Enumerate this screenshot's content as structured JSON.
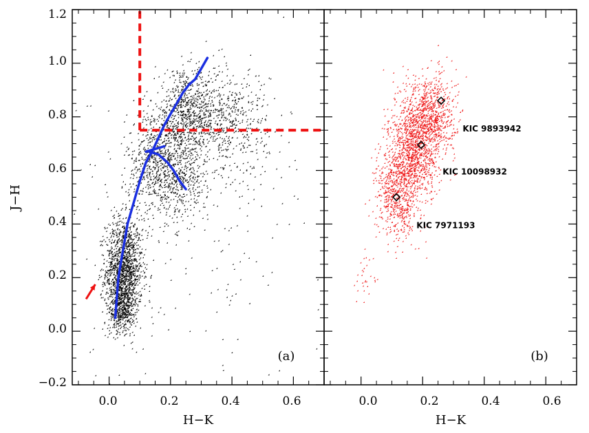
{
  "chart_data": [
    {
      "panel": "a",
      "type": "scatter",
      "panel_label": "(a)",
      "xlabel": "H−K",
      "ylabel": "J−H",
      "xlim": [
        -0.12,
        0.7
      ],
      "ylim": [
        -0.2,
        1.2
      ],
      "xticks": [
        0.0,
        0.2,
        0.4,
        0.6
      ],
      "xtick_labels": [
        "0.0",
        "0.2",
        "0.4",
        "0.6"
      ],
      "yticks": [
        -0.2,
        0.0,
        0.2,
        0.4,
        0.6,
        0.8,
        1.0,
        1.2
      ],
      "ytick_labels": [
        "−0.2",
        "0.0",
        "0.2",
        "0.4",
        "0.6",
        "0.8",
        "1.0",
        "1.2"
      ],
      "colors": {
        "points": "#000000",
        "track": "#1a2fe0",
        "cut": "#ee1111",
        "arrow": "#ee1111"
      },
      "point_clusters": [
        {
          "name": "dwarf-locus",
          "center": [
            0.05,
            0.22
          ],
          "spread": [
            0.03,
            0.1
          ],
          "count": 1500
        },
        {
          "name": "main-sequence-tail",
          "center": [
            0.04,
            0.08
          ],
          "spread": [
            0.02,
            0.04
          ],
          "count": 300
        },
        {
          "name": "giant-branch",
          "center": [
            0.16,
            0.62
          ],
          "spread": [
            0.05,
            0.1
          ],
          "count": 700
        },
        {
          "name": "giant-clump-upper",
          "center": [
            0.25,
            0.8
          ],
          "spread": [
            0.05,
            0.08
          ],
          "count": 700
        },
        {
          "name": "red-giants-right",
          "center": [
            0.38,
            0.78
          ],
          "spread": [
            0.07,
            0.1
          ],
          "count": 600
        },
        {
          "name": "cool-dwarf-branch",
          "center": [
            0.24,
            0.55
          ],
          "spread": [
            0.04,
            0.06
          ],
          "count": 250
        },
        {
          "name": "outliers",
          "center": [
            0.3,
            0.4
          ],
          "spread": [
            0.2,
            0.3
          ],
          "count": 200
        }
      ],
      "extreme_points": [
        [
          -0.06,
          -0.08
        ],
        [
          -0.05,
          -0.07
        ],
        [
          0.12,
          -0.16
        ],
        [
          0.57,
          1.17
        ],
        [
          -0.09,
          0.6
        ],
        [
          -0.06,
          0.62
        ],
        [
          0.0,
          0.82
        ],
        [
          0.43,
          0.19
        ]
      ],
      "series": [
        {
          "name": "main-track",
          "x": [
            0.02,
            0.03,
            0.045,
            0.06,
            0.08,
            0.1,
            0.12,
            0.14,
            0.16,
            0.18,
            0.2,
            0.22,
            0.24,
            0.26,
            0.28,
            0.3,
            0.32
          ],
          "y": [
            0.05,
            0.2,
            0.3,
            0.4,
            0.48,
            0.56,
            0.63,
            0.67,
            0.72,
            0.77,
            0.81,
            0.85,
            0.89,
            0.92,
            0.94,
            0.98,
            1.02
          ]
        },
        {
          "name": "dwarf-branch",
          "x": [
            0.13,
            0.16,
            0.19,
            0.21,
            0.23,
            0.25
          ],
          "y": [
            0.67,
            0.66,
            0.63,
            0.6,
            0.56,
            0.53
          ]
        },
        {
          "name": "giant-tip",
          "x": [
            0.12,
            0.15,
            0.18
          ],
          "y": [
            0.67,
            0.68,
            0.69
          ]
        }
      ],
      "cut_lines": [
        {
          "x": [
            0.1,
            0.1
          ],
          "y": [
            0.75,
            1.2
          ]
        },
        {
          "x": [
            0.1,
            0.7
          ],
          "y": [
            0.75,
            0.75
          ]
        }
      ],
      "arrow": {
        "from": [
          -0.075,
          0.12
        ],
        "to": [
          -0.045,
          0.175
        ]
      }
    },
    {
      "panel": "b",
      "type": "scatter",
      "panel_label": "(b)",
      "xlabel": "H−K",
      "xlim": [
        -0.12,
        0.7
      ],
      "ylim": [
        -0.2,
        1.2
      ],
      "xticks": [
        0.0,
        0.2,
        0.4,
        0.6
      ],
      "xtick_labels": [
        "0.0",
        "0.2",
        "0.4",
        "0.6"
      ],
      "colors": {
        "points": "#ee1111",
        "markers": "#000000"
      },
      "point_clusters": [
        {
          "name": "band-upper",
          "center": [
            0.22,
            0.8
          ],
          "spread": [
            0.045,
            0.08
          ],
          "count": 900
        },
        {
          "name": "band-mid",
          "center": [
            0.17,
            0.66
          ],
          "spread": [
            0.04,
            0.08
          ],
          "count": 900
        },
        {
          "name": "band-lower",
          "center": [
            0.12,
            0.5
          ],
          "spread": [
            0.035,
            0.08
          ],
          "count": 600
        },
        {
          "name": "low-tail",
          "center": [
            0.02,
            0.2
          ],
          "spread": [
            0.02,
            0.05
          ],
          "count": 30
        }
      ],
      "highlighted": [
        {
          "name": "KIC 9893942",
          "x": 0.26,
          "y": 0.86
        },
        {
          "name": "KIC 10098932",
          "x": 0.195,
          "y": 0.695
        },
        {
          "name": "KIC 7971193",
          "x": 0.115,
          "y": 0.5
        }
      ],
      "annotations": [
        {
          "text": "KIC 9893942",
          "x": 0.33,
          "y": 0.745
        },
        {
          "text": "KIC 10098932",
          "x": 0.265,
          "y": 0.585
        },
        {
          "text": "KIC 7971193",
          "x": 0.18,
          "y": 0.385
        }
      ]
    }
  ]
}
